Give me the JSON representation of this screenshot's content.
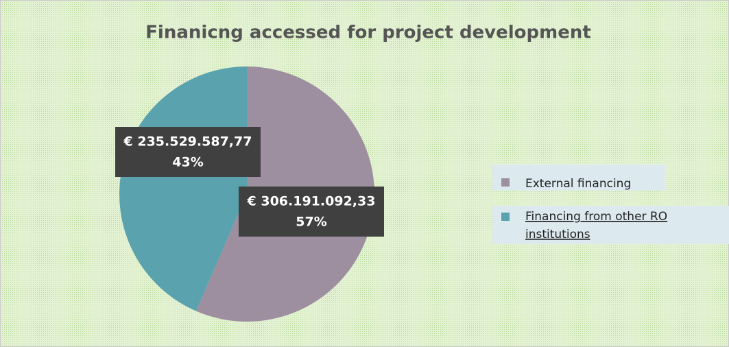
{
  "chart_data": {
    "type": "pie",
    "title": "Finanicng accessed for project development",
    "categories": [
      "External financing",
      "Financing from other RO institutions"
    ],
    "values": [
      306191092.33,
      235529587.77
    ],
    "value_labels": [
      "€ 306.191.092,33",
      "€ 235.529.587,77"
    ],
    "percent_labels": [
      "57%",
      "43%"
    ],
    "colors": [
      "#9d8f9f",
      "#5aa2ad"
    ],
    "legend": "right"
  }
}
